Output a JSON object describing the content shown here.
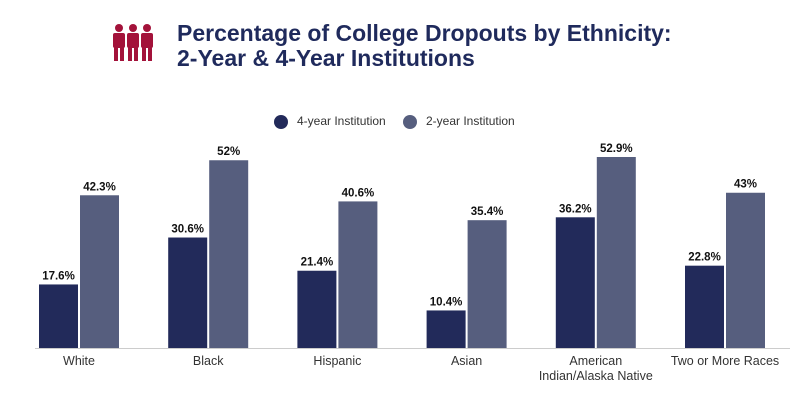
{
  "chart_data": {
    "type": "bar",
    "title": "Percentage of College Dropouts by Ethnicity:",
    "subtitle": "2-Year & 4-Year Institutions",
    "categories": [
      "White",
      "Black",
      "Hispanic",
      "Asian",
      "American Indian/Alaska Native",
      "Two or More Races"
    ],
    "series": [
      {
        "name": "4-year Institution",
        "color": "#222a5a",
        "values": [
          17.6,
          30.6,
          21.4,
          10.4,
          36.2,
          22.8
        ],
        "value_labels": [
          "17.6%",
          "30.6%",
          "21.4%",
          "10.4%",
          "36.2%",
          "22.8%"
        ]
      },
      {
        "name": "2-year Institution",
        "color": "#565e7e",
        "values": [
          42.3,
          52,
          40.6,
          35.4,
          52.9,
          43
        ],
        "value_labels": [
          "42.3%",
          "52%",
          "40.6%",
          "35.4%",
          "52.9%",
          "43%"
        ]
      }
    ],
    "legend": "top"
  }
}
